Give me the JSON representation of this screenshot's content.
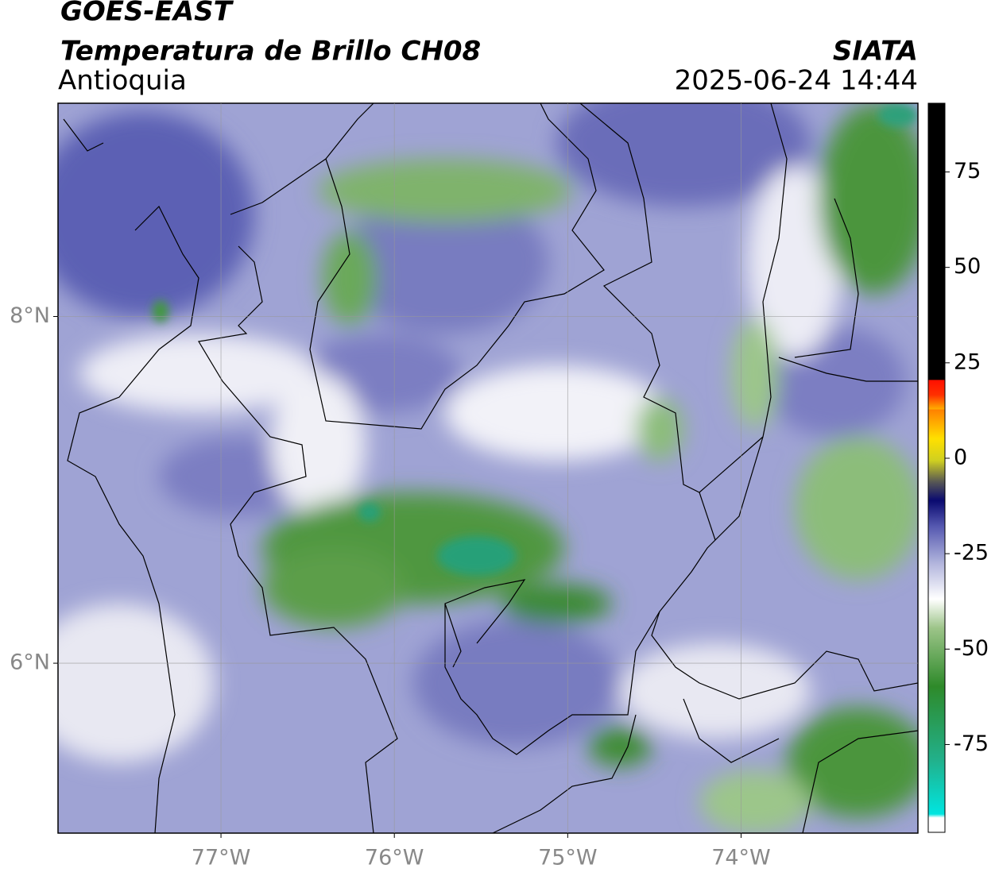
{
  "chart_data": {
    "type": "map",
    "title": "GOES-EAST",
    "subtitle": "Temperatura de Brillo CH08",
    "region": "Antioquia",
    "source": "SIATA",
    "timestamp": "2025-06-24 14:44",
    "xlim": [
      -77.94,
      -72.98
    ],
    "ylim": [
      5.02,
      9.23
    ],
    "xticks": [
      {
        "value": -77,
        "label": "77°W"
      },
      {
        "value": -76,
        "label": "76°W"
      },
      {
        "value": -75,
        "label": "75°W"
      },
      {
        "value": -74,
        "label": "74°W"
      }
    ],
    "yticks": [
      {
        "value": 6,
        "label": "6°N"
      },
      {
        "value": 8,
        "label": "8°N"
      }
    ],
    "grid": true,
    "colorbar": {
      "lim": [
        -98,
        93
      ],
      "ticks": [
        -75,
        -50,
        -25,
        0,
        25,
        50,
        75
      ]
    }
  }
}
